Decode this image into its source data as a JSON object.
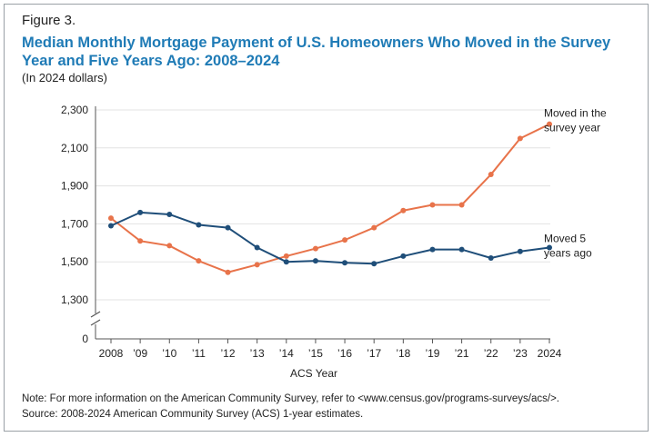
{
  "figure_label": "Figure 3.",
  "chart_data": {
    "type": "line",
    "title": "Median Monthly Mortgage Payment of U.S. Homeowners Who Moved in the Survey Year and Five Years Ago: 2008–2024",
    "subtitle": "(In 2024 dollars)",
    "xlabel": "ACS Year",
    "ylabel": "",
    "categories": [
      "2008",
      "’09",
      "’10",
      "’11",
      "’12",
      "’13",
      "’14",
      "’15",
      "’16",
      "’17",
      "’18",
      "’19",
      "’21",
      "’22",
      "’23",
      "2024"
    ],
    "y_ticks": [
      "2,300",
      "2,100",
      "1,900",
      "1,700",
      "1,500",
      "1,300",
      "0"
    ],
    "ylim": [
      1200,
      2300
    ],
    "axis_break": true,
    "grid": true,
    "series": [
      {
        "name": "Moved in the survey year",
        "label_lines": [
          "Moved in the",
          "survey year"
        ],
        "color": "#e8734a",
        "values": [
          1730,
          1610,
          1585,
          1505,
          1445,
          1485,
          1530,
          1570,
          1615,
          1680,
          1770,
          1800,
          1800,
          1960,
          2150,
          2225
        ]
      },
      {
        "name": "Moved 5 years ago",
        "label_lines": [
          "Moved 5",
          "years ago"
        ],
        "color": "#1f4e79",
        "values": [
          1690,
          1760,
          1750,
          1695,
          1680,
          1575,
          1500,
          1505,
          1495,
          1490,
          1530,
          1565,
          1565,
          1520,
          1555,
          1575
        ]
      }
    ]
  },
  "note": {
    "line1": "Note: For more information on the American Community Survey, refer to <www.census.gov/programs-surveys/acs/>.",
    "line2": "Source: 2008-2024 American Community Survey (ACS) 1-year estimates."
  }
}
